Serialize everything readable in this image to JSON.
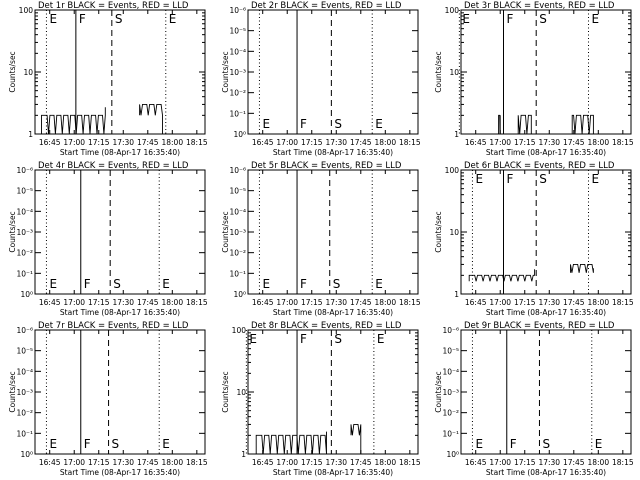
{
  "chart_data": [
    {
      "type": "line",
      "title": "Det 1r BLACK = Events, RED = LLD",
      "ylabel": "Counts/sec",
      "xlabel": "Start Time (08-Apr-17 16:35:40)",
      "x_ticks": [
        "16:45",
        "17:00",
        "17:15",
        "17:30",
        "17:45",
        "18:00",
        "18:15"
      ],
      "y_ticks": [
        "1",
        "10",
        "100"
      ],
      "ylim": [
        1,
        100
      ],
      "markers": [
        {
          "label": "E",
          "time": "16:43",
          "style": "dotted"
        },
        {
          "label": "F",
          "time": "17:01",
          "style": "solid"
        },
        {
          "label": "S",
          "time": "17:23",
          "style": "dashed"
        },
        {
          "label": "E",
          "time": "17:56",
          "style": "dotted"
        }
      ],
      "events": [
        {
          "start": "16:40",
          "end": "17:19",
          "base": 1,
          "high": 2,
          "tail": 2.7
        },
        {
          "start": "17:40",
          "end": "17:54",
          "base": 2,
          "high": 3,
          "tail": 1
        }
      ]
    },
    {
      "type": "line",
      "title": "Det 2r BLACK = Events, RED = LLD",
      "ylabel": "Counts/sec",
      "xlabel": "Start Time (08-Apr-17 16:35:40)",
      "x_ticks": [
        "16:45",
        "17:00",
        "17:15",
        "17:30",
        "17:45",
        "18:00",
        "18:15"
      ],
      "y_ticks": [
        "10⁰",
        "10⁻¹",
        "10⁻²",
        "10⁻³",
        "10⁻⁴",
        "10⁻⁵",
        "10⁻⁶"
      ],
      "markers": [
        {
          "label": "E",
          "time": "16:43",
          "style": "dotted"
        },
        {
          "label": "F",
          "time": "17:06",
          "style": "solid"
        },
        {
          "label": "S",
          "time": "17:27",
          "style": "dashed"
        },
        {
          "label": "E",
          "time": "17:52",
          "style": "dotted"
        }
      ],
      "events": []
    },
    {
      "type": "line",
      "title": "Det 3r BLACK = Events, RED = LLD",
      "ylabel": "Counts/sec",
      "xlabel": "Start Time (08-Apr-17 16:35:40)",
      "x_ticks": [
        "16:45",
        "17:00",
        "17:15",
        "17:30",
        "17:45",
        "18:00",
        "18:15"
      ],
      "y_ticks": [
        "1",
        "10",
        "100"
      ],
      "ylim": [
        1,
        100
      ],
      "markers": [
        {
          "label": "E",
          "time": "16:35",
          "style": "dotted"
        },
        {
          "label": "F",
          "time": "17:02",
          "style": "solid"
        },
        {
          "label": "S",
          "time": "17:22",
          "style": "dashed"
        },
        {
          "label": "E",
          "time": "17:54",
          "style": "dotted"
        }
      ],
      "events": [
        {
          "start": "16:59",
          "end": "17:00",
          "base": 1,
          "high": 2,
          "tail": 1
        },
        {
          "start": "17:11",
          "end": "17:19",
          "base": 1,
          "high": 2,
          "tail": 1
        },
        {
          "start": "17:44",
          "end": "17:57",
          "base": 1,
          "high": 2,
          "tail": 1
        }
      ]
    },
    {
      "type": "line",
      "title": "Det 4r BLACK = Events, RED = LLD",
      "ylabel": "Counts/sec",
      "xlabel": "Start Time (08-Apr-17 16:35:40)",
      "x_ticks": [
        "16:45",
        "17:00",
        "17:15",
        "17:30",
        "17:45",
        "18:00",
        "18:15"
      ],
      "y_ticks": [
        "10⁰",
        "10⁻¹",
        "10⁻²",
        "10⁻³",
        "10⁻⁴",
        "10⁻⁵",
        "10⁻⁶"
      ],
      "markers": [
        {
          "label": "E",
          "time": "16:43",
          "style": "dotted"
        },
        {
          "label": "F",
          "time": "17:04",
          "style": "solid"
        },
        {
          "label": "S",
          "time": "17:22",
          "style": "dashed"
        },
        {
          "label": "E",
          "time": "17:52",
          "style": "dotted"
        }
      ],
      "events": []
    },
    {
      "type": "line",
      "title": "Det 5r BLACK = Events, RED = LLD",
      "ylabel": "Counts/sec",
      "xlabel": "Start Time (08-Apr-17 16:35:40)",
      "x_ticks": [
        "16:45",
        "17:00",
        "17:15",
        "17:30",
        "17:45",
        "18:00",
        "18:15"
      ],
      "y_ticks": [
        "10⁰",
        "10⁻¹",
        "10⁻²",
        "10⁻³",
        "10⁻⁴",
        "10⁻⁵",
        "10⁻⁶"
      ],
      "markers": [
        {
          "label": "E",
          "time": "16:43",
          "style": "dotted"
        },
        {
          "label": "F",
          "time": "17:06",
          "style": "solid"
        },
        {
          "label": "S",
          "time": "17:26",
          "style": "dashed"
        },
        {
          "label": "E",
          "time": "17:52",
          "style": "dotted"
        }
      ],
      "events": []
    },
    {
      "type": "line",
      "title": "Det 6r BLACK = Events, RED = LLD",
      "ylabel": "Counts/sec",
      "xlabel": "Start Time (08-Apr-17 16:35:40)",
      "x_ticks": [
        "16:45",
        "17:00",
        "17:15",
        "17:30",
        "17:45",
        "18:00",
        "18:15"
      ],
      "y_ticks": [
        "1",
        "10",
        "100"
      ],
      "ylim": [
        1,
        100
      ],
      "markers": [
        {
          "label": "E",
          "time": "16:43",
          "style": "dotted"
        },
        {
          "label": "F",
          "time": "17:02",
          "style": "solid"
        },
        {
          "label": "S",
          "time": "17:22",
          "style": "dashed"
        },
        {
          "label": "E",
          "time": "17:54",
          "style": "dotted"
        }
      ],
      "events": [
        {
          "start": "16:41",
          "end": "17:21",
          "base": 1.6,
          "high": 2,
          "tail": 2.5
        },
        {
          "start": "17:43",
          "end": "17:57",
          "base": 2.2,
          "high": 3,
          "tail": 2.6
        }
      ]
    },
    {
      "type": "line",
      "title": "Det 7r BLACK = Events, RED = LLD",
      "ylabel": "Counts/sec",
      "xlabel": "Start Time (08-Apr-17 16:35:40)",
      "x_ticks": [
        "16:45",
        "17:00",
        "17:15",
        "17:30",
        "17:45",
        "18:00",
        "18:15"
      ],
      "y_ticks": [
        "10⁰",
        "10⁻¹",
        "10⁻²",
        "10⁻³",
        "10⁻⁴",
        "10⁻⁵",
        "10⁻⁶"
      ],
      "markers": [
        {
          "label": "E",
          "time": "16:43",
          "style": "dotted"
        },
        {
          "label": "F",
          "time": "17:04",
          "style": "solid"
        },
        {
          "label": "S",
          "time": "17:21",
          "style": "dashed"
        },
        {
          "label": "E",
          "time": "17:52",
          "style": "dotted"
        }
      ],
      "events": []
    },
    {
      "type": "line",
      "title": "Det 8r BLACK = Events, RED = LLD",
      "ylabel": "Counts/sec",
      "xlabel": "Start Time (08-Apr-17 16:35:40)",
      "x_ticks": [
        "16:45",
        "17:00",
        "17:15",
        "17:30",
        "17:45",
        "18:00",
        "18:15"
      ],
      "y_ticks": [
        "1",
        "10",
        "100"
      ],
      "ylim": [
        1,
        100
      ],
      "markers": [
        {
          "label": "E",
          "time": "16:35",
          "style": "dotted"
        },
        {
          "label": "F",
          "time": "17:06",
          "style": "solid"
        },
        {
          "label": "S",
          "time": "17:27",
          "style": "dashed"
        },
        {
          "label": "E",
          "time": "17:53",
          "style": "dotted"
        }
      ],
      "events": [
        {
          "start": "16:41",
          "end": "17:24",
          "base": 1,
          "high": 2,
          "tail": 2.3
        },
        {
          "start": "17:39",
          "end": "17:45",
          "base": 2,
          "high": 3,
          "tail": 1
        }
      ]
    },
    {
      "type": "line",
      "title": "Det 9r BLACK = Events, RED = LLD",
      "ylabel": "Counts/sec",
      "xlabel": "Start Time (08-Apr-17 16:35:40)",
      "x_ticks": [
        "16:45",
        "17:00",
        "17:15",
        "17:30",
        "17:45",
        "18:00",
        "18:15"
      ],
      "y_ticks": [
        "10⁰",
        "10⁻¹",
        "10⁻²",
        "10⁻³",
        "10⁻⁴",
        "10⁻⁵",
        "10⁻⁶"
      ],
      "markers": [
        {
          "label": "E",
          "time": "16:43",
          "style": "dotted"
        },
        {
          "label": "F",
          "time": "17:04",
          "style": "solid"
        },
        {
          "label": "S",
          "time": "17:24",
          "style": "dashed"
        },
        {
          "label": "E",
          "time": "17:56",
          "style": "dotted"
        }
      ],
      "events": []
    }
  ]
}
